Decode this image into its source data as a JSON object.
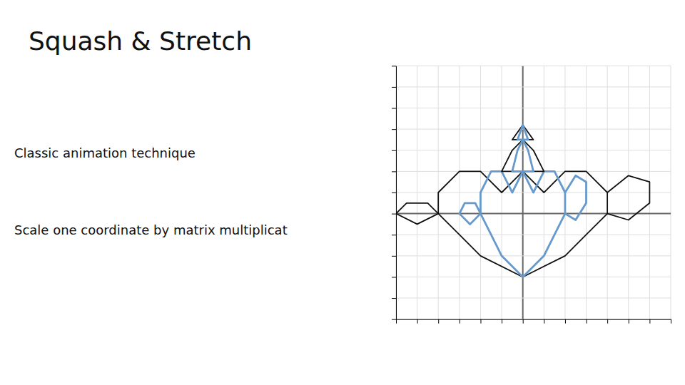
{
  "chart_data": {
    "type": "line",
    "title": "Squash & Stretch",
    "annotations": [
      "Classic animation technique",
      "Scale one coordinate by matrix multiplicat"
    ],
    "xlim": [
      -6,
      7
    ],
    "ylim": [
      -5,
      7
    ],
    "xticks": [
      -6,
      -5,
      -4,
      -3,
      -2,
      -1,
      0,
      1,
      2,
      3,
      4,
      5,
      6,
      7
    ],
    "yticks": [
      -5,
      -4,
      -3,
      -2,
      -1,
      0,
      1,
      2,
      3,
      4,
      5,
      6,
      7
    ],
    "grid": true,
    "tick_labels": false,
    "series": [
      {
        "color": "#111111",
        "x": [
          -4,
          -3,
          -2,
          0,
          2,
          3,
          4,
          4,
          3,
          2,
          1,
          0,
          -1,
          -2,
          -3,
          -4,
          -4
        ],
        "values": [
          0,
          -1,
          -2,
          -3,
          -2,
          -1,
          0,
          1,
          2,
          2,
          1,
          2,
          1,
          2,
          2,
          1,
          0
        ]
      },
      {
        "color": "#6699cc",
        "x": [
          -2,
          -1.5,
          -1,
          0,
          1,
          1.5,
          2,
          2,
          1.5,
          1,
          0.5,
          0,
          -0.5,
          -1,
          -1.5,
          -2,
          -2
        ],
        "values": [
          0,
          -1,
          -2,
          -3,
          -2,
          -1,
          0,
          1,
          2,
          2,
          1,
          2,
          1,
          2,
          2,
          1,
          0
        ]
      },
      {
        "color": "#111111",
        "x": [
          -1,
          -0.5,
          0,
          0.5,
          1,
          -1
        ],
        "values": [
          2,
          3,
          3.5,
          3,
          2,
          2
        ]
      },
      {
        "color": "#6699cc",
        "x": [
          -0.5,
          -0.25,
          0,
          0.25,
          0.5,
          -0.5
        ],
        "values": [
          2,
          3,
          3.5,
          3,
          2,
          2
        ]
      },
      {
        "color": "#111111",
        "x": [
          -0.5,
          0,
          0.5,
          -0.5
        ],
        "values": [
          3.5,
          4.2,
          3.5,
          3.5
        ]
      },
      {
        "color": "#6699cc",
        "x": [
          -0.25,
          0,
          0.25,
          -0.25
        ],
        "values": [
          3.5,
          4.2,
          3.5,
          3.5
        ]
      },
      {
        "color": "#111111",
        "x": [
          -4,
          -5,
          -6,
          -5.5,
          -4.5,
          -4
        ],
        "values": [
          0,
          -0.5,
          0,
          0.5,
          0.5,
          0
        ]
      },
      {
        "color": "#6699cc",
        "x": [
          -2,
          -2.5,
          -3,
          -2.75,
          -2.25,
          -2
        ],
        "values": [
          0,
          -0.5,
          0,
          0.5,
          0.5,
          0
        ]
      },
      {
        "color": "#111111",
        "x": [
          4,
          5,
          6,
          6,
          5,
          4
        ],
        "values": [
          0,
          -0.3,
          0.5,
          1.5,
          1.8,
          1
        ]
      },
      {
        "color": "#6699cc",
        "x": [
          2,
          2.5,
          3,
          3,
          2.5,
          2
        ],
        "values": [
          0,
          -0.3,
          0.5,
          1.5,
          1.8,
          1
        ]
      }
    ]
  }
}
